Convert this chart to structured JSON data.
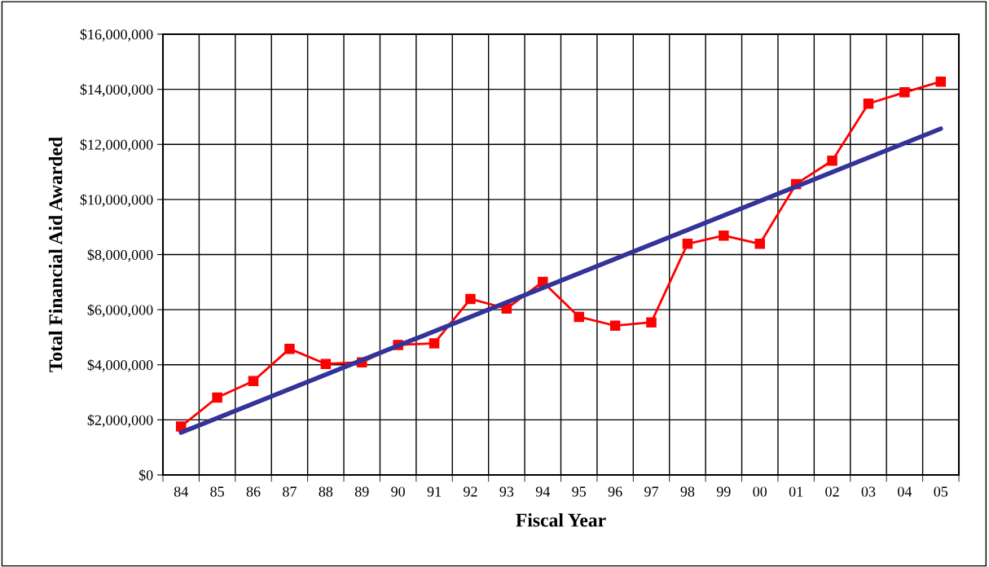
{
  "chart_data": {
    "type": "line",
    "xlabel": "Fiscal Year",
    "ylabel": "Total Financial Aid Awarded",
    "categories": [
      "84",
      "85",
      "86",
      "87",
      "88",
      "89",
      "90",
      "91",
      "92",
      "93",
      "94",
      "95",
      "96",
      "97",
      "98",
      "99",
      "00",
      "01",
      "02",
      "03",
      "04",
      "05"
    ],
    "series": [
      {
        "color": "#ff0000",
        "marker": "square",
        "values": [
          1760000,
          2810000,
          3410000,
          4580000,
          4030000,
          4090000,
          4720000,
          4780000,
          6390000,
          6040000,
          7010000,
          5740000,
          5420000,
          5540000,
          8390000,
          8690000,
          8390000,
          10560000,
          11410000,
          13480000,
          13890000,
          14280000
        ]
      },
      {
        "type": "line",
        "color": "#333399",
        "marker": "none",
        "x": [
          "84",
          "05"
        ],
        "values": [
          1540000,
          12570000
        ]
      }
    ],
    "ylim": [
      0,
      16000000
    ],
    "yticks": [
      {
        "value": 0,
        "label": "$0"
      },
      {
        "value": 2000000,
        "label": "$2,000,000"
      },
      {
        "value": 4000000,
        "label": "$4,000,000"
      },
      {
        "value": 6000000,
        "label": "$6,000,000"
      },
      {
        "value": 8000000,
        "label": "$8,000,000"
      },
      {
        "value": 10000000,
        "label": "$10,000,000"
      },
      {
        "value": 12000000,
        "label": "$12,000,000"
      },
      {
        "value": 14000000,
        "label": "$14,000,000"
      },
      {
        "value": 16000000,
        "label": "$16,000,000"
      }
    ],
    "grid": true
  }
}
